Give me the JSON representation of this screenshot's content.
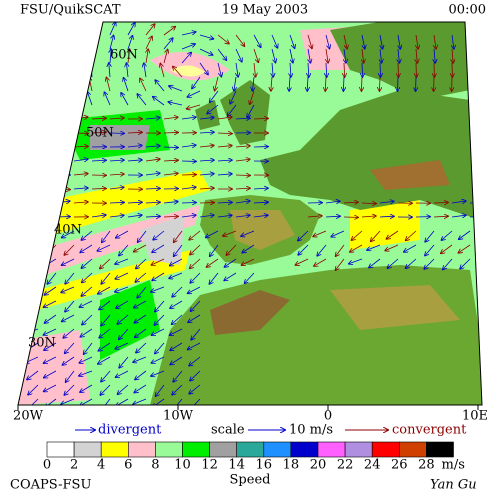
{
  "header": {
    "title": "FSU/QuikSCAT",
    "date": "19 May 2003",
    "time": "00:00"
  },
  "map": {
    "lat_labels": [
      "60N",
      "50N",
      "40N",
      "30N"
    ],
    "lon_labels": [
      "20W",
      "10W",
      "0",
      "10E"
    ]
  },
  "legend": {
    "divergent": "divergent",
    "scale": "scale",
    "scale_value": "10 m/s",
    "convergent": "convergent"
  },
  "colorbar": {
    "labels": [
      "0",
      "2",
      "4",
      "6",
      "8",
      "10",
      "12",
      "14",
      "16",
      "18",
      "20",
      "22",
      "24",
      "26",
      "28"
    ],
    "unit": "m/s",
    "title": "Speed"
  },
  "footer": {
    "left": "COAPS-FSU",
    "right": "Yan Gu"
  }
}
